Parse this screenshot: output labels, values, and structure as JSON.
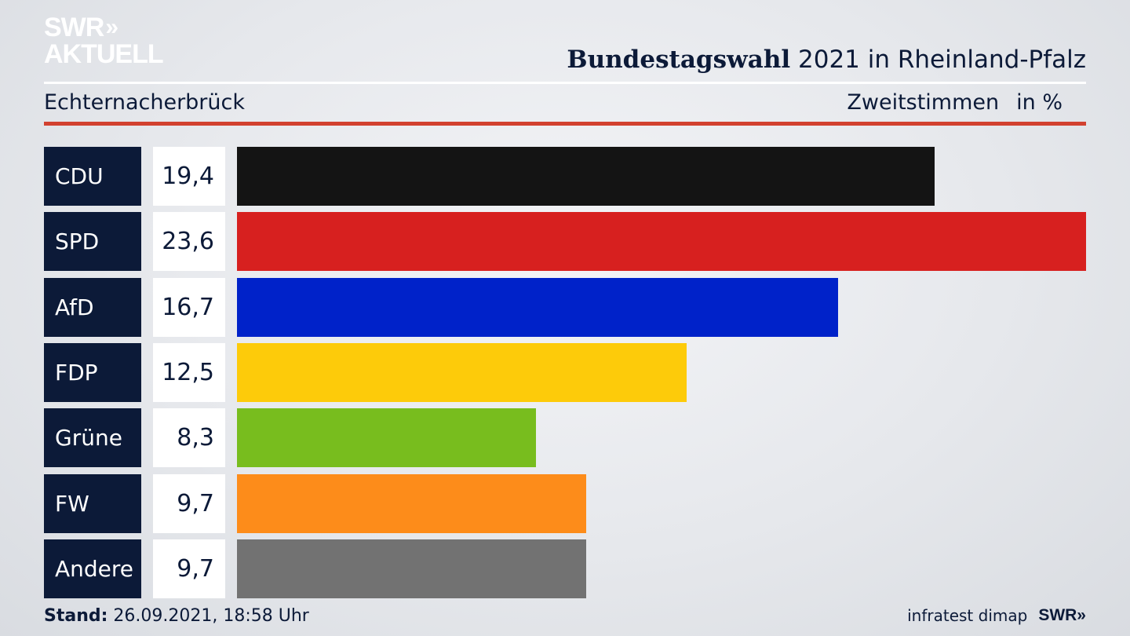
{
  "logo": {
    "line1": "SWR",
    "arrows": "»",
    "line2": "AKTUELL"
  },
  "header": {
    "title_bold": "Bundestagswahl",
    "title_rest": " 2021 in Rheinland-Pfalz",
    "region": "Echternacherbrück",
    "measure": "Zweitstimmen",
    "unit": "in %"
  },
  "chart_data": {
    "type": "bar",
    "orientation": "horizontal",
    "categories": [
      "CDU",
      "SPD",
      "AfD",
      "FDP",
      "Grüne",
      "FW",
      "Andere"
    ],
    "values": [
      19.4,
      23.6,
      16.7,
      12.5,
      8.3,
      9.7,
      9.7
    ],
    "value_labels": [
      "19,4",
      "23,6",
      "16,7",
      "12,5",
      "8,3",
      "9,7",
      "9,7"
    ],
    "colors": [
      "#141414",
      "#d7201f",
      "#0022c9",
      "#fdcb0a",
      "#78bd1e",
      "#fd8c1a",
      "#727272"
    ],
    "title": "Bundestagswahl 2021 in Rheinland-Pfalz",
    "xlim": [
      0,
      23.6
    ]
  },
  "footer": {
    "stand_label": "Stand:",
    "stand_value": " 26.09.2021, 18:58 Uhr",
    "source": "infratest dimap",
    "brand": "SWR»"
  }
}
